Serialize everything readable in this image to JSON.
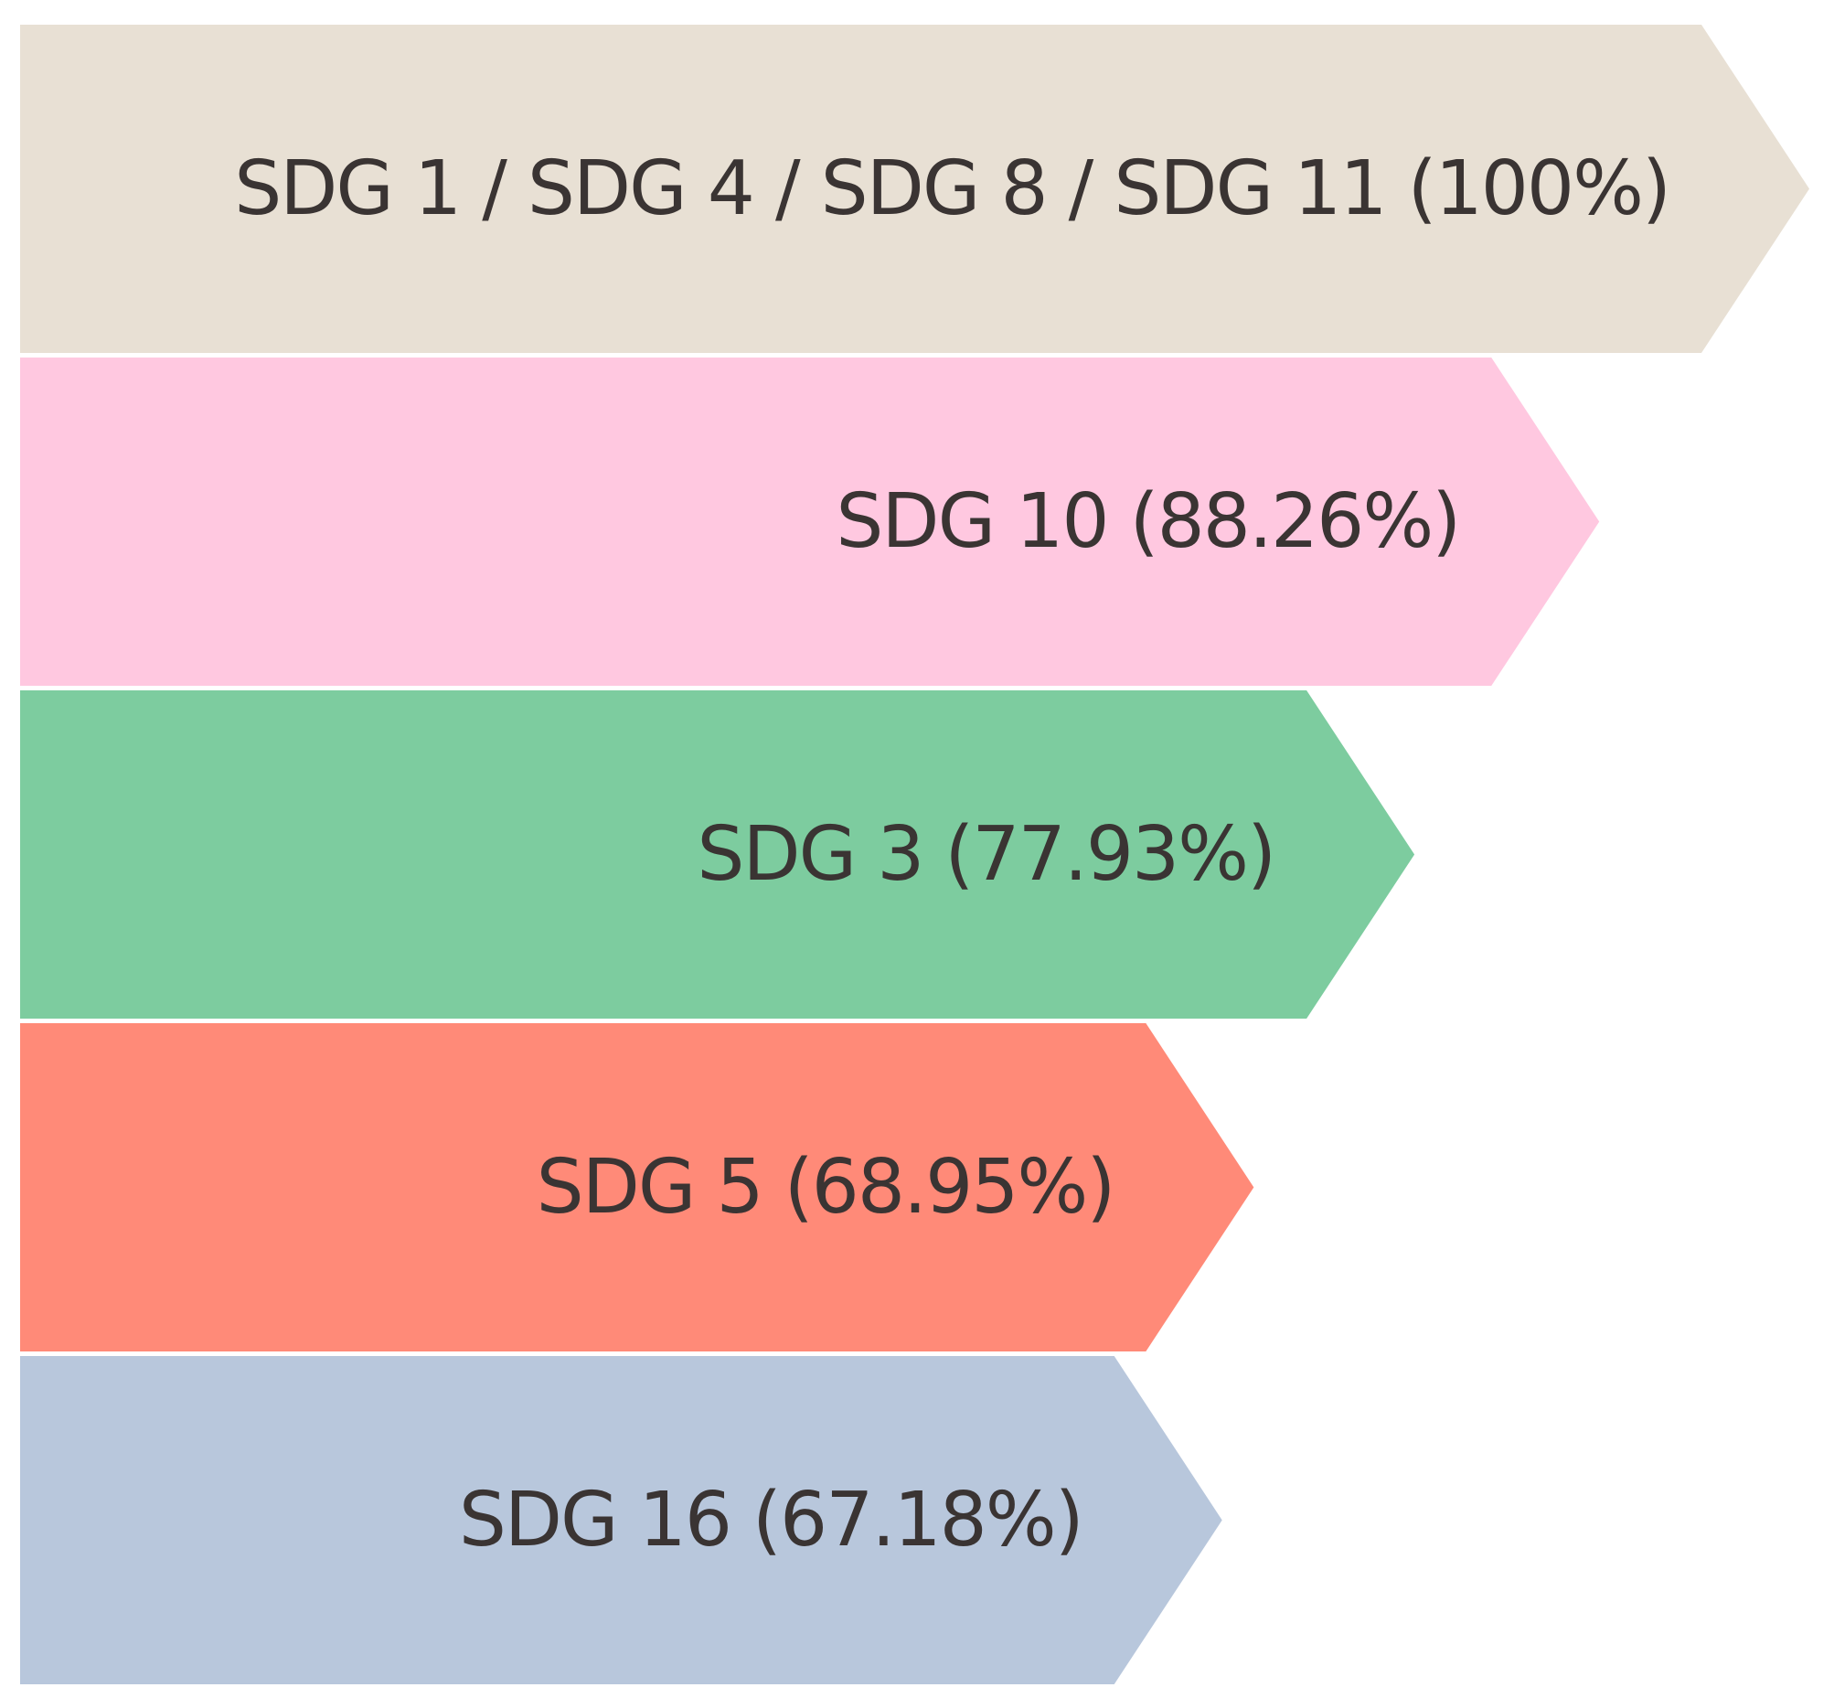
{
  "chart_data": {
    "type": "bar",
    "orientation": "horizontal",
    "title": "",
    "xlabel": "",
    "ylabel": "",
    "xlim": [
      0,
      100
    ],
    "grid": false,
    "legend": "none",
    "categories": [
      "SDG 1 / SDG 4 / SDG 8 / SDG 11",
      "SDG 10",
      "SDG 3",
      "SDG 5",
      "SDG 16"
    ],
    "values": [
      100,
      88.26,
      77.93,
      68.95,
      67.18
    ],
    "labels": [
      "SDG 1 / SDG 4 / SDG 8 / SDG 11 (100%)",
      "SDG 10 (88.26%)",
      "SDG 3 (77.93%)",
      "SDG 5 (68.95%)",
      "SDG 16 (67.18%)"
    ],
    "colors": [
      "#e8e0d4",
      "#ffc8e0",
      "#7dcc9f",
      "#ff8a78",
      "#b8c7dc"
    ]
  }
}
